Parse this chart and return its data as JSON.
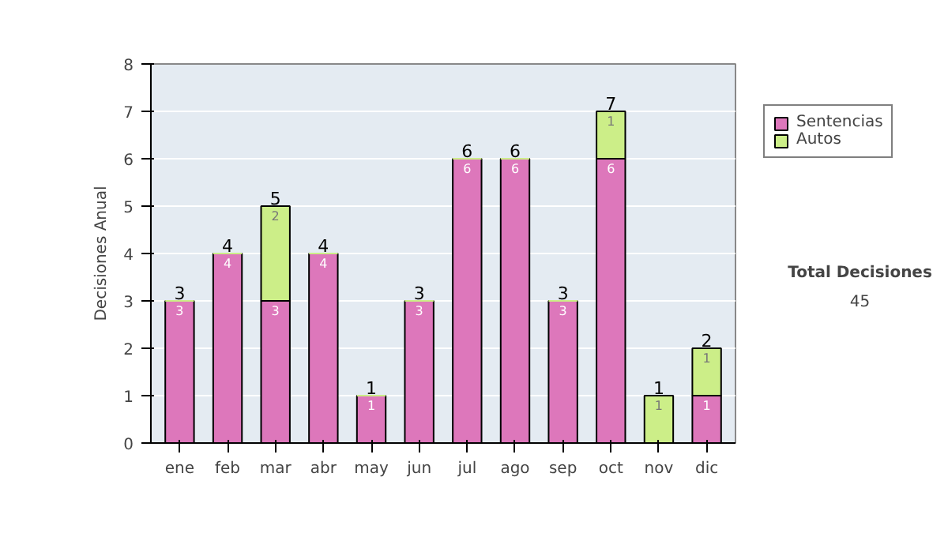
{
  "chart_data": {
    "type": "bar",
    "stacked": true,
    "ylabel": "Decisiones Anual",
    "categories": [
      "ene",
      "feb",
      "mar",
      "abr",
      "may",
      "jun",
      "jul",
      "ago",
      "sep",
      "oct",
      "nov",
      "dic"
    ],
    "series": [
      {
        "name": "Sentencias",
        "color": "#dd77bb",
        "values": [
          3,
          4,
          3,
          4,
          1,
          3,
          6,
          6,
          3,
          6,
          0,
          1
        ],
        "value_labels": [
          "3",
          "4",
          "3",
          "4",
          "1",
          "3",
          "6",
          "6",
          "3",
          "6",
          null,
          "1"
        ]
      },
      {
        "name": "Autos",
        "color": "#ccee88",
        "values": [
          0,
          0,
          2,
          0,
          0,
          0,
          0,
          0,
          0,
          1,
          1,
          1
        ],
        "value_labels": [
          null,
          null,
          "2",
          null,
          null,
          null,
          null,
          null,
          null,
          "1",
          "1",
          "1"
        ]
      }
    ],
    "totals": [
      "3",
      "4",
      "5",
      "4",
      "1",
      "3",
      "6",
      "6",
      "3",
      "7",
      "1",
      "2"
    ],
    "ylim": [
      0,
      8
    ],
    "yticks": [
      0,
      1,
      2,
      3,
      4,
      5,
      6,
      7,
      8
    ],
    "grid": "y",
    "legend": "right",
    "annotations": [
      "Total Decisiones",
      "45"
    ]
  }
}
